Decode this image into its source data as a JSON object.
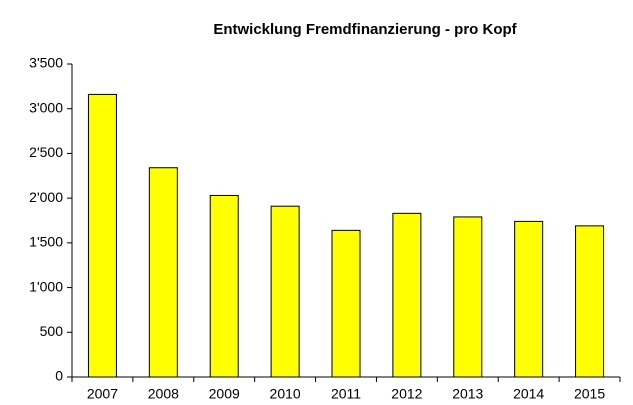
{
  "chart_data": {
    "type": "bar",
    "title": "Entwicklung Fremdfinanzierung - pro Kopf",
    "categories": [
      "2007",
      "2008",
      "2009",
      "2010",
      "2011",
      "2012",
      "2013",
      "2014",
      "2015"
    ],
    "values": [
      3160,
      2340,
      2030,
      1910,
      1640,
      1830,
      1790,
      1740,
      1690
    ],
    "color": "#ffff00",
    "ylim": [
      0,
      3500
    ],
    "yticks": [
      0,
      500,
      {
        "value": 1000,
        "label": "1'000"
      },
      {
        "value": 1500,
        "label": "1'500"
      },
      {
        "value": 2000,
        "label": "2'000"
      },
      {
        "value": 2500,
        "label": "2'500"
      },
      {
        "value": 3000,
        "label": "3'000"
      },
      {
        "value": 3500,
        "label": "3'500"
      }
    ],
    "grid": false
  }
}
